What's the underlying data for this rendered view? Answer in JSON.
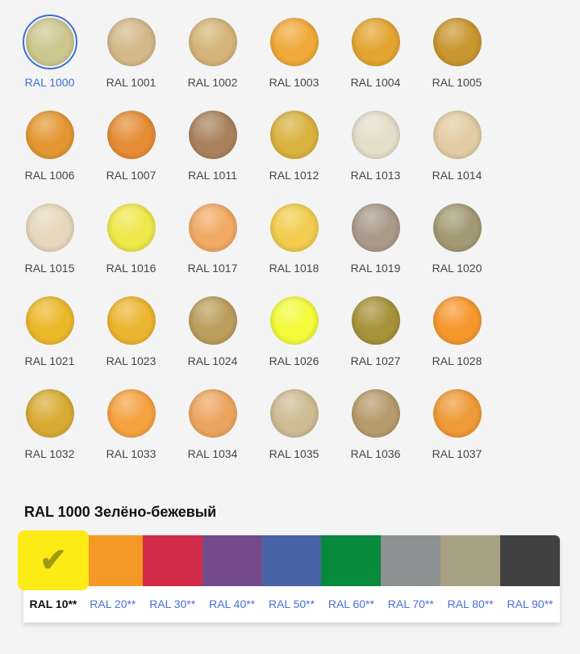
{
  "swatches": [
    {
      "label": "RAL 1000",
      "color": "#cdc78f",
      "selected": true
    },
    {
      "label": "RAL 1001",
      "color": "#d3b98a"
    },
    {
      "label": "RAL 1002",
      "color": "#d4b478"
    },
    {
      "label": "RAL 1003",
      "color": "#f0a93a"
    },
    {
      "label": "RAL 1004",
      "color": "#e3a530"
    },
    {
      "label": "RAL 1005",
      "color": "#c9962f"
    },
    {
      "label": "RAL 1006",
      "color": "#e39733"
    },
    {
      "label": "RAL 1007",
      "color": "#e58c35"
    },
    {
      "label": "RAL 1011",
      "color": "#a9825c"
    },
    {
      "label": "RAL 1012",
      "color": "#d9b240"
    },
    {
      "label": "RAL 1013",
      "color": "#e4ddc9"
    },
    {
      "label": "RAL 1014",
      "color": "#e1cca3"
    },
    {
      "label": "RAL 1015",
      "color": "#e7d7bd"
    },
    {
      "label": "RAL 1016",
      "color": "#eee84a"
    },
    {
      "label": "RAL 1017",
      "color": "#f1a964"
    },
    {
      "label": "RAL 1018",
      "color": "#f2cc4e"
    },
    {
      "label": "RAL 1019",
      "color": "#a99a8a"
    },
    {
      "label": "RAL 1020",
      "color": "#a39a74"
    },
    {
      "label": "RAL 1021",
      "color": "#ebb82a"
    },
    {
      "label": "RAL 1023",
      "color": "#ecb52f"
    },
    {
      "label": "RAL 1024",
      "color": "#bb9d5c"
    },
    {
      "label": "RAL 1026",
      "color": "#f3fb3a"
    },
    {
      "label": "RAL 1027",
      "color": "#a6923a"
    },
    {
      "label": "RAL 1028",
      "color": "#f6972e"
    },
    {
      "label": "RAL 1032",
      "color": "#d8ac34"
    },
    {
      "label": "RAL 1033",
      "color": "#f5a140"
    },
    {
      "label": "RAL 1034",
      "color": "#eca55f"
    },
    {
      "label": "RAL 1035",
      "color": "#cdbc94"
    },
    {
      "label": "RAL 1036",
      "color": "#b69b6c"
    },
    {
      "label": "RAL 1037",
      "color": "#ee9a37"
    }
  ],
  "selected_title": "RAL 1000 Зелёно-бежевый",
  "palette": [
    {
      "label": "RAL 10**",
      "color": "#fdeb16",
      "active": true,
      "icon": "check-icon",
      "glyph": "✔"
    },
    {
      "label": "RAL 20**",
      "color": "#f69826"
    },
    {
      "label": "RAL 30**",
      "color": "#d22b4a"
    },
    {
      "label": "RAL 40**",
      "color": "#744b8a"
    },
    {
      "label": "RAL 50**",
      "color": "#4964a6"
    },
    {
      "label": "RAL 60**",
      "color": "#088a3d"
    },
    {
      "label": "RAL 70**",
      "color": "#8f9292"
    },
    {
      "label": "RAL 80**",
      "color": "#a8a083"
    },
    {
      "label": "RAL 90**",
      "color": "#414141"
    }
  ]
}
